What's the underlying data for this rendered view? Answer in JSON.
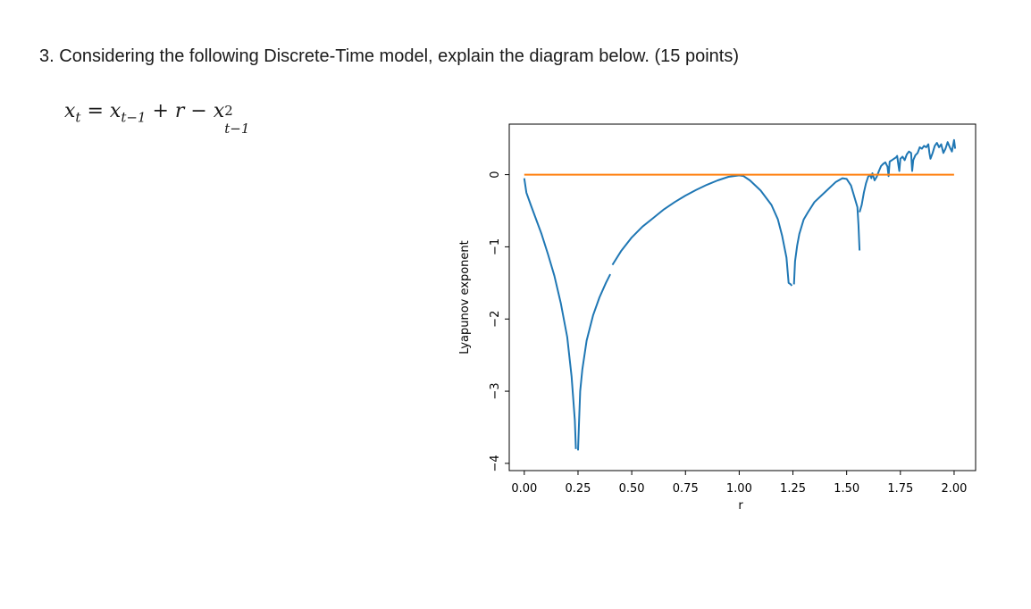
{
  "question": {
    "number": "3.",
    "text": "Considering the following Discrete-Time model, explain the diagram below. (15 points)"
  },
  "equation": {
    "lhs": "x",
    "lhs_sub": "t",
    "eq": "=",
    "t1": "x",
    "t1_sub": "t−1",
    "plus": "+",
    "r": "r",
    "minus": "−",
    "t2": "x",
    "t2_sup": "2",
    "t2_sub": "t−1"
  },
  "chart_data": {
    "type": "line",
    "xlabel": "r",
    "ylabel": "Lyapunov exponent",
    "xlim": [
      -0.07,
      2.1
    ],
    "ylim": [
      -4.1,
      0.7
    ],
    "xticks": [
      "0.00",
      "0.25",
      "0.50",
      "0.75",
      "1.00",
      "1.25",
      "1.50",
      "1.75",
      "2.00"
    ],
    "yticks": [
      "0",
      "−1",
      "−2",
      "−3",
      "−4"
    ],
    "xtick_values": [
      0,
      0.25,
      0.5,
      0.75,
      1.0,
      1.25,
      1.5,
      1.75,
      2.0
    ],
    "ytick_values": [
      0,
      -1,
      -2,
      -3,
      -4
    ],
    "grid": false,
    "colors": {
      "lyapunov": "#1f77b4",
      "zero": "#ff7f0e"
    },
    "series": [
      {
        "key": "lyapunov",
        "color": "#1f77b4",
        "segments": [
          [
            [
              0.0,
              -0.05
            ],
            [
              0.01,
              -0.25
            ],
            [
              0.03,
              -0.42
            ],
            [
              0.05,
              -0.58
            ],
            [
              0.08,
              -0.82
            ],
            [
              0.11,
              -1.1
            ],
            [
              0.14,
              -1.4
            ],
            [
              0.17,
              -1.78
            ],
            [
              0.2,
              -2.25
            ],
            [
              0.22,
              -2.8
            ],
            [
              0.235,
              -3.4
            ],
            [
              0.24,
              -3.8
            ]
          ],
          [
            [
              0.25,
              -3.82
            ],
            [
              0.255,
              -3.4
            ],
            [
              0.26,
              -3.0
            ],
            [
              0.27,
              -2.7
            ],
            [
              0.29,
              -2.3
            ],
            [
              0.32,
              -1.95
            ],
            [
              0.35,
              -1.7
            ],
            [
              0.38,
              -1.5
            ],
            [
              0.4,
              -1.38
            ]
          ],
          [
            [
              0.41,
              -1.25
            ],
            [
              0.45,
              -1.06
            ],
            [
              0.5,
              -0.87
            ],
            [
              0.55,
              -0.72
            ],
            [
              0.6,
              -0.6
            ],
            [
              0.65,
              -0.48
            ],
            [
              0.7,
              -0.38
            ],
            [
              0.75,
              -0.29
            ],
            [
              0.8,
              -0.21
            ],
            [
              0.85,
              -0.14
            ],
            [
              0.9,
              -0.08
            ],
            [
              0.95,
              -0.03
            ],
            [
              1.0,
              -0.01
            ],
            [
              1.02,
              -0.02
            ],
            [
              1.05,
              -0.08
            ],
            [
              1.1,
              -0.22
            ],
            [
              1.15,
              -0.42
            ],
            [
              1.18,
              -0.62
            ],
            [
              1.2,
              -0.85
            ],
            [
              1.22,
              -1.15
            ],
            [
              1.23,
              -1.5
            ],
            [
              1.24,
              -1.52
            ],
            [
              1.245,
              -1.54
            ]
          ],
          [
            [
              1.255,
              -1.52
            ],
            [
              1.26,
              -1.2
            ],
            [
              1.27,
              -0.98
            ],
            [
              1.28,
              -0.82
            ],
            [
              1.3,
              -0.62
            ],
            [
              1.32,
              -0.52
            ],
            [
              1.35,
              -0.38
            ],
            [
              1.4,
              -0.24
            ],
            [
              1.45,
              -0.1
            ],
            [
              1.48,
              -0.05
            ],
            [
              1.5,
              -0.06
            ],
            [
              1.52,
              -0.15
            ],
            [
              1.54,
              -0.35
            ],
            [
              1.55,
              -0.45
            ],
            [
              1.555,
              -0.7
            ],
            [
              1.56,
              -1.05
            ]
          ],
          [
            [
              1.56,
              -0.52
            ],
            [
              1.57,
              -0.42
            ],
            [
              1.58,
              -0.25
            ],
            [
              1.59,
              -0.12
            ],
            [
              1.6,
              -0.03
            ],
            [
              1.61,
              0.0
            ],
            [
              1.615,
              -0.05
            ],
            [
              1.62,
              0.02
            ],
            [
              1.63,
              -0.08
            ],
            [
              1.64,
              -0.03
            ],
            [
              1.65,
              0.05
            ],
            [
              1.66,
              0.12
            ],
            [
              1.67,
              0.15
            ],
            [
              1.68,
              0.17
            ],
            [
              1.69,
              0.11
            ],
            [
              1.695,
              -0.02
            ],
            [
              1.7,
              0.18
            ],
            [
              1.71,
              0.2
            ],
            [
              1.72,
              0.22
            ],
            [
              1.73,
              0.24
            ],
            [
              1.735,
              0.26
            ],
            [
              1.74,
              0.15
            ],
            [
              1.745,
              0.05
            ],
            [
              1.75,
              0.22
            ],
            [
              1.76,
              0.25
            ],
            [
              1.77,
              0.2
            ],
            [
              1.78,
              0.28
            ],
            [
              1.79,
              0.32
            ],
            [
              1.8,
              0.3
            ],
            [
              1.805,
              0.05
            ],
            [
              1.81,
              0.2
            ],
            [
              1.82,
              0.27
            ],
            [
              1.83,
              0.3
            ],
            [
              1.84,
              0.38
            ],
            [
              1.85,
              0.36
            ],
            [
              1.86,
              0.4
            ],
            [
              1.87,
              0.38
            ],
            [
              1.88,
              0.42
            ],
            [
              1.885,
              0.3
            ],
            [
              1.89,
              0.22
            ],
            [
              1.9,
              0.3
            ],
            [
              1.91,
              0.4
            ],
            [
              1.92,
              0.44
            ],
            [
              1.93,
              0.38
            ],
            [
              1.94,
              0.42
            ],
            [
              1.95,
              0.3
            ],
            [
              1.96,
              0.36
            ],
            [
              1.97,
              0.45
            ],
            [
              1.98,
              0.38
            ],
            [
              1.99,
              0.32
            ],
            [
              2.0,
              0.48
            ],
            [
              2.005,
              0.36
            ]
          ]
        ]
      },
      {
        "key": "zero",
        "color": "#ff7f0e",
        "segments": [
          [
            [
              0.0,
              0.0
            ],
            [
              2.0,
              0.0
            ]
          ]
        ]
      }
    ]
  }
}
